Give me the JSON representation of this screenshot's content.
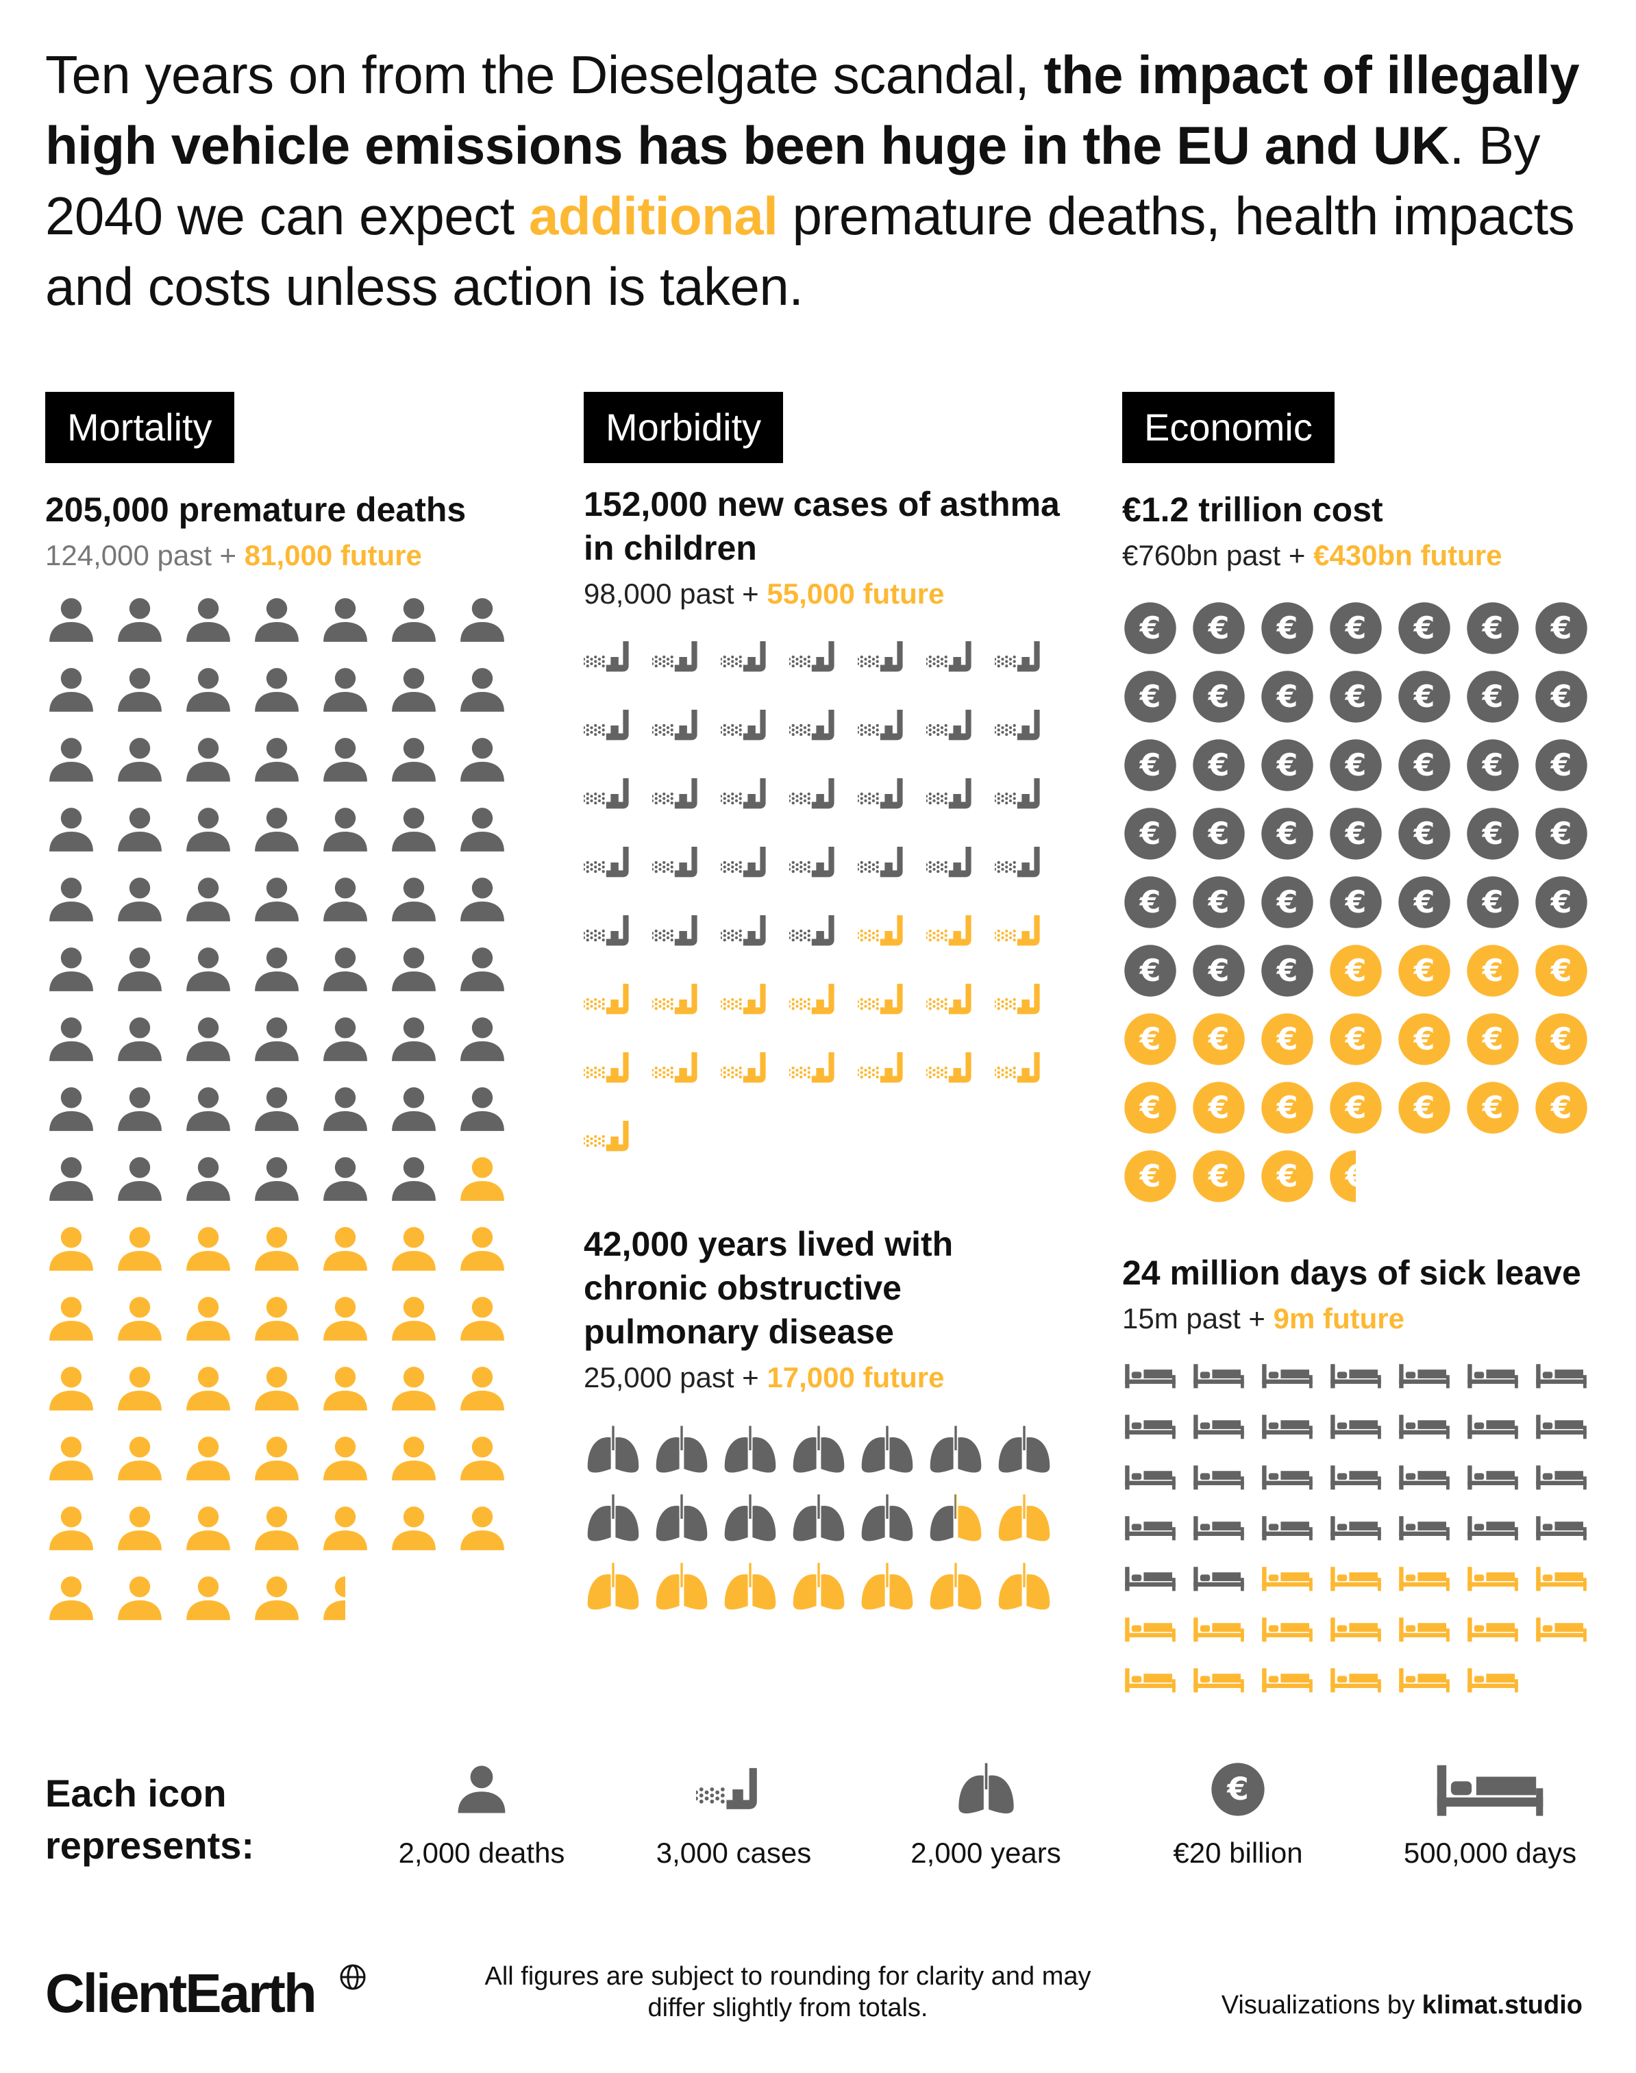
{
  "intro": {
    "part1": "Ten years on from the Dieselgate scandal, ",
    "bold": "the impact of illegally high vehicle emissions has been huge in the EU and UK",
    "part2": ". By 2040 we can expect ",
    "highlight": "additional",
    "part3": " premature deaths, health impacts and costs unless action is taken."
  },
  "colors": {
    "past": "#636363",
    "future": "#fdb833",
    "tag_bg": "#000000"
  },
  "sections": {
    "mortality": {
      "tag": "Mortality",
      "heading": "205,000 premature deaths",
      "past_text": "124,000 past",
      "plus": " + ",
      "future_text": "81,000 future"
    },
    "asthma": {
      "tag": "Morbidity",
      "heading": "152,000 new cases of asthma in children",
      "past_text": "98,000 past",
      "plus": " + ",
      "future_text": "55,000 future"
    },
    "copd": {
      "heading": "42,000 years lived with chronic obstructive pulmonary disease",
      "past_text": "25,000 past",
      "plus": " + ",
      "future_text": "17,000 future"
    },
    "economic": {
      "tag": "Economic",
      "heading": "€1.2 trillion cost",
      "past_text": "€760bn past",
      "plus": " + ",
      "future_text": "€430bn future"
    },
    "sickleave": {
      "heading": "24 million days of sick leave",
      "past_text": "15m past",
      "plus": " + ",
      "future_text": "9m future"
    }
  },
  "chart_data": [
    {
      "type": "icon-array",
      "name": "mortality",
      "icon": "person-icon",
      "title": "205,000 premature deaths",
      "unit_per_icon": 2000,
      "columns": 7,
      "series": [
        {
          "name": "past",
          "value": 124000,
          "icons": 62
        },
        {
          "name": "future",
          "value": 81000,
          "icons": 40.5
        }
      ]
    },
    {
      "type": "icon-array",
      "name": "asthma",
      "icon": "inhaler-icon",
      "title": "152,000 new cases of asthma in children",
      "unit_per_icon": 3000,
      "columns": 7,
      "series": [
        {
          "name": "past",
          "value": 98000,
          "icons": 32
        },
        {
          "name": "future",
          "value": 55000,
          "icons": 18
        }
      ]
    },
    {
      "type": "icon-array",
      "name": "copd",
      "icon": "lungs-icon",
      "title": "42,000 years lived with chronic obstructive pulmonary disease",
      "unit_per_icon": 2000,
      "columns": 7,
      "series": [
        {
          "name": "past",
          "value": 25000,
          "icons": 12.5
        },
        {
          "name": "future",
          "value": 17000,
          "icons": 8.5
        }
      ]
    },
    {
      "type": "icon-array",
      "name": "economic",
      "icon": "euro-coin-icon",
      "title": "€1.2 trillion cost",
      "unit_per_icon": 20,
      "unit": "€ billion",
      "columns": 7,
      "series": [
        {
          "name": "past",
          "value": 760,
          "icons": 38
        },
        {
          "name": "future",
          "value": 430,
          "icons": 21.5
        }
      ]
    },
    {
      "type": "icon-array",
      "name": "sickleave",
      "icon": "bed-icon",
      "title": "24 million days of sick leave",
      "unit_per_icon": 500000,
      "columns": 7,
      "series": [
        {
          "name": "past",
          "value": 15000000,
          "icons": 30
        },
        {
          "name": "future",
          "value": 9000000,
          "icons": 18
        }
      ]
    }
  ],
  "legend": {
    "title": "Each icon represents:",
    "items": [
      {
        "icon": "person-icon",
        "label": "2,000 deaths"
      },
      {
        "icon": "inhaler-icon",
        "label": "3,000 cases"
      },
      {
        "icon": "lungs-icon",
        "label": "2,000 years"
      },
      {
        "icon": "euro-coin-icon",
        "label": "€20 billion"
      },
      {
        "icon": "bed-icon",
        "label": "500,000 days"
      }
    ]
  },
  "footer": {
    "brand": "ClientEarth",
    "note": "All figures are subject to rounding for clarity and may differ slightly from totals.",
    "credit_prefix": "Visualizations by ",
    "credit_name": "klimat.studio"
  }
}
